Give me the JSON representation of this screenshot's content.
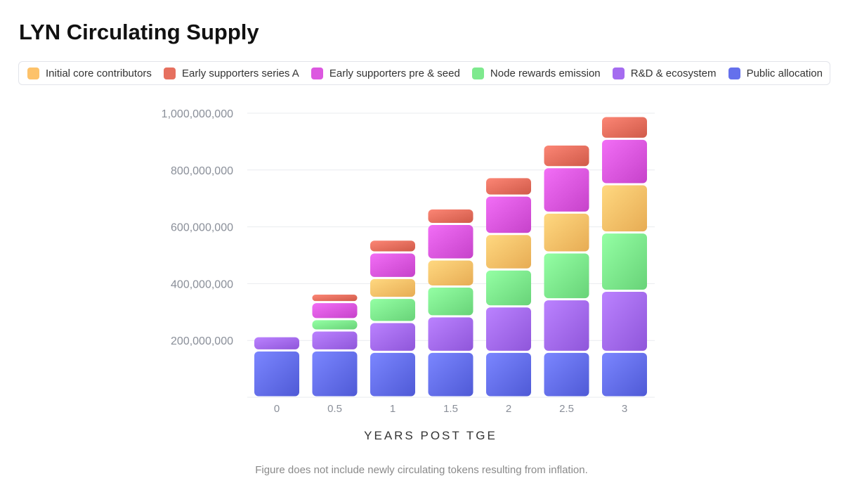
{
  "title": "LYN Circulating Supply",
  "footnote": "Figure does not include newly circulating tokens resulting from inflation.",
  "chart_data": {
    "type": "bar",
    "stacked": true,
    "title": "LYN Circulating Supply",
    "xlabel": "YEARS POST TGE",
    "ylabel": "",
    "categories": [
      "0",
      "0.5",
      "1",
      "1.5",
      "2",
      "2.5",
      "3"
    ],
    "ylim": [
      0,
      1000000000
    ],
    "yticks": [
      200000000,
      400000000,
      600000000,
      800000000,
      1000000000
    ],
    "ytick_labels": [
      "200,000,000",
      "400,000,000",
      "600,000,000",
      "800,000,000",
      "1,000,000,000"
    ],
    "grid": true,
    "legend_position": "top",
    "series": [
      {
        "name": "Public allocation",
        "color": "#6570ec",
        "values": [
          165000000,
          165000000,
          160000000,
          160000000,
          160000000,
          160000000,
          160000000
        ]
      },
      {
        "name": "R&D & ecosystem",
        "color": "#a56cf0",
        "values": [
          50000000,
          70000000,
          105000000,
          125000000,
          160000000,
          185000000,
          215000000
        ]
      },
      {
        "name": "Node rewards emission",
        "color": "#7ee98e",
        "values": [
          0,
          40000000,
          85000000,
          105000000,
          130000000,
          165000000,
          205000000
        ]
      },
      {
        "name": "Initial core contributors",
        "color": "#fdc26a",
        "values": [
          0,
          0,
          70000000,
          95000000,
          125000000,
          140000000,
          170000000
        ]
      },
      {
        "name": "Early supporters pre & seed",
        "color": "#dc58e0",
        "values": [
          0,
          60000000,
          90000000,
          125000000,
          135000000,
          160000000,
          160000000
        ]
      },
      {
        "name": "Early supporters series A",
        "color": "#e6705f",
        "values": [
          0,
          30000000,
          45000000,
          55000000,
          65000000,
          80000000,
          80000000
        ]
      }
    ],
    "legend_order": [
      "Initial core contributors",
      "Early supporters series A",
      "Early supporters pre & seed",
      "Node rewards emission",
      "R&D & ecosystem",
      "Public allocation"
    ]
  }
}
